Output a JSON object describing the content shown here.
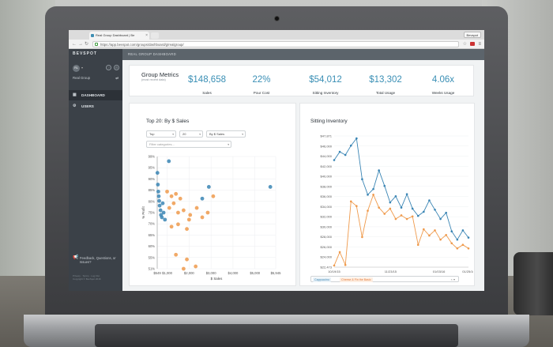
{
  "browser": {
    "tab_title": "Real Group Dashboard | Be",
    "profile_label": "Bevspot",
    "url": "https://app.bevspot.com/groups/dashboard/g/realgroup/"
  },
  "sidebar": {
    "brand": "BEVSPOT",
    "avatar_initials": "RL",
    "group_name": "Real Group",
    "nav": [
      {
        "label": "DASHBOARD",
        "icon": "grid-icon"
      },
      {
        "label": "USERS",
        "icon": "gear-icon"
      }
    ],
    "feedback": "Feedback, Questions, or Issues?",
    "footer_line1": "Privacy · Terms · Log Out",
    "footer_line2": "Copyright © BevSpot 2016"
  },
  "breadcrumb": "REAL GROUP DASHBOARD",
  "group_metrics": {
    "title": "Group Metrics",
    "subtitle": "(most recent data)",
    "items": [
      {
        "value": "$148,658",
        "label": "Sales"
      },
      {
        "value": "22%",
        "label": "Pour Cost"
      },
      {
        "value": "$54,012",
        "label": "Sitting Inventory"
      },
      {
        "value": "$13,302",
        "label": "Total Usage"
      },
      {
        "value": "4.06x",
        "label": "Weeks Usage"
      }
    ]
  },
  "top20": {
    "title": "Top 20: By $ Sales",
    "filter_top": "Top",
    "filter_count": "20",
    "filter_by": "By $ Sales",
    "categories_placeholder": "Filter categories..."
  },
  "sitting_inventory": {
    "title": "Sitting Inventory",
    "legend_a": "Cappuccino",
    "legend_b": "Cheese & Fin the Basic"
  },
  "colors": {
    "blue": "#3a85b4",
    "orange": "#ef9a4c",
    "sidebar": "#3b4148",
    "accent": "#3a8fb5"
  },
  "chart_data": [
    {
      "type": "scatter",
      "title": "Top 20: By $ Sales",
      "xlabel": "$ Sales",
      "ylabel": "% Profit",
      "x_ticks": [
        "$549",
        "$1,000",
        "$2,000",
        "$3,000",
        "$4,000",
        "$5,000",
        "$5,945"
      ],
      "y_ticks": [
        "99%",
        "95%",
        "90%",
        "85%",
        "80%",
        "75%",
        "70%",
        "65%",
        "60%",
        "55%",
        "51%"
      ],
      "xlim": [
        549,
        5945
      ],
      "ylim": [
        51,
        99
      ],
      "series": [
        {
          "color": "blue",
          "points": [
            [
              1080,
              97
            ],
            [
              560,
              92
            ],
            [
              580,
              87
            ],
            [
              600,
              84
            ],
            [
              620,
              82
            ],
            [
              640,
              80
            ],
            [
              660,
              78
            ],
            [
              700,
              76
            ],
            [
              720,
              74
            ],
            [
              760,
              73
            ],
            [
              800,
              79
            ],
            [
              840,
              75
            ],
            [
              900,
              72
            ],
            [
              2600,
              81
            ],
            [
              2900,
              86
            ],
            [
              5700,
              86
            ]
          ]
        },
        {
          "color": "orange",
          "points": [
            [
              1000,
              84
            ],
            [
              1200,
              82
            ],
            [
              1400,
              83
            ],
            [
              1600,
              81
            ],
            [
              1300,
              79
            ],
            [
              1100,
              77
            ],
            [
              1500,
              75
            ],
            [
              1750,
              76
            ],
            [
              2050,
              74
            ],
            [
              2350,
              77
            ],
            [
              2000,
              72
            ],
            [
              1500,
              70
            ],
            [
              1900,
              68
            ],
            [
              2600,
              73
            ],
            [
              2850,
              75
            ],
            [
              3100,
              82
            ],
            [
              1200,
              69
            ],
            [
              1400,
              57
            ],
            [
              1900,
              55
            ],
            [
              1750,
              51
            ],
            [
              2300,
              52
            ]
          ]
        }
      ]
    },
    {
      "type": "line",
      "title": "Sitting Inventory",
      "x_ticks": [
        "10/19/15",
        "11/23/15",
        "01/03/16",
        "01/25/16"
      ],
      "y_ticks": [
        "$47,871",
        "$46,000",
        "$44,000",
        "$42,000",
        "$40,000",
        "$38,000",
        "$36,000",
        "$34,000",
        "$32,000",
        "$30,000",
        "$28,000",
        "$26,000",
        "$24,000",
        "$22,473"
      ],
      "ylim": [
        22473,
        47871
      ],
      "series": [
        {
          "name": "Cappuccino",
          "color": "blue",
          "values": [
            43200,
            44800,
            44200,
            46000,
            47400,
            39500,
            36500,
            37600,
            41200,
            38200,
            35000,
            36200,
            34000,
            36600,
            33800,
            32400,
            33200,
            35400,
            33600,
            31800,
            33000,
            29400,
            27800,
            29600,
            28200
          ]
        },
        {
          "name": "Cheese & Fin the Basic",
          "color": "orange",
          "values": [
            22800,
            25400,
            22900,
            35200,
            34300,
            28300,
            33400,
            36500,
            34000,
            32800,
            33800,
            31800,
            32500,
            31800,
            32300,
            26800,
            29800,
            28600,
            29600,
            27800,
            28700,
            27100,
            26100,
            26800,
            26100
          ]
        }
      ]
    }
  ]
}
